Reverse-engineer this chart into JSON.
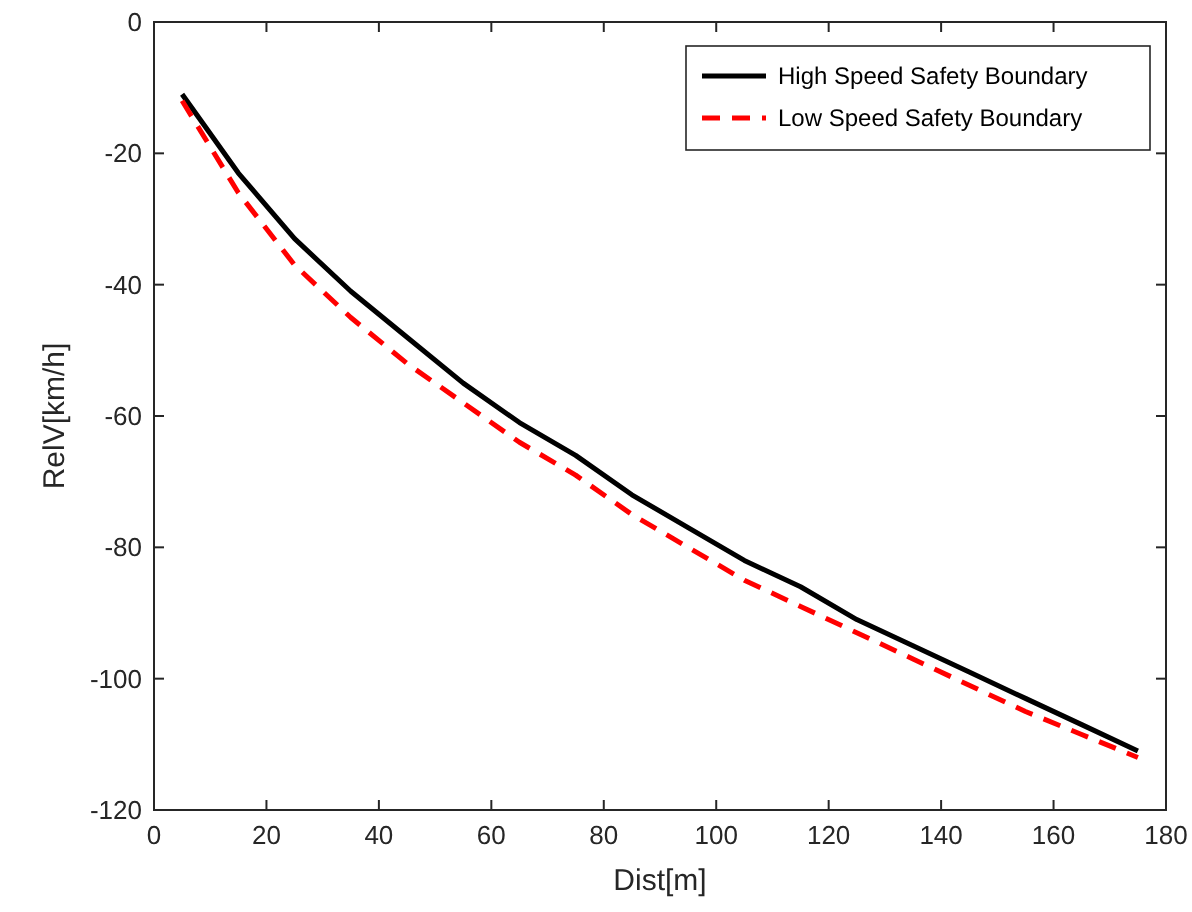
{
  "chart_data": {
    "type": "line",
    "xlabel": "Dist[m]",
    "ylabel": "RelV[km/h]",
    "xlim": [
      0,
      180
    ],
    "xticks": [
      0,
      20,
      40,
      60,
      80,
      100,
      120,
      140,
      160,
      180
    ],
    "ylim": [
      -120,
      0
    ],
    "yticks": [
      -120,
      -100,
      -80,
      -60,
      -40,
      -20,
      0
    ],
    "x": [
      5,
      15,
      25,
      35,
      45,
      55,
      65,
      75,
      85,
      95,
      105,
      115,
      125,
      135,
      145,
      155,
      165,
      175
    ],
    "legend": "top right",
    "grid": false,
    "marker": "none",
    "series": [
      {
        "name": "High Speed Safety Boundary",
        "color": "#000000",
        "line_style": "solid",
        "values": [
          -11,
          -23,
          -33,
          -41,
          -48,
          -55,
          -61,
          -66,
          -72,
          -77,
          -82,
          -86,
          -91,
          -95,
          -99,
          -103,
          -107,
          -111
        ]
      },
      {
        "name": "Low Speed Safety Boundary",
        "color": "#ff0000",
        "line_style": "dashed",
        "values": [
          -12,
          -26,
          -37,
          -45,
          -52,
          -58,
          -64,
          -69,
          -75,
          -80,
          -85,
          -89,
          -93,
          -97,
          -101,
          -105,
          -108.5,
          -112
        ]
      }
    ]
  }
}
